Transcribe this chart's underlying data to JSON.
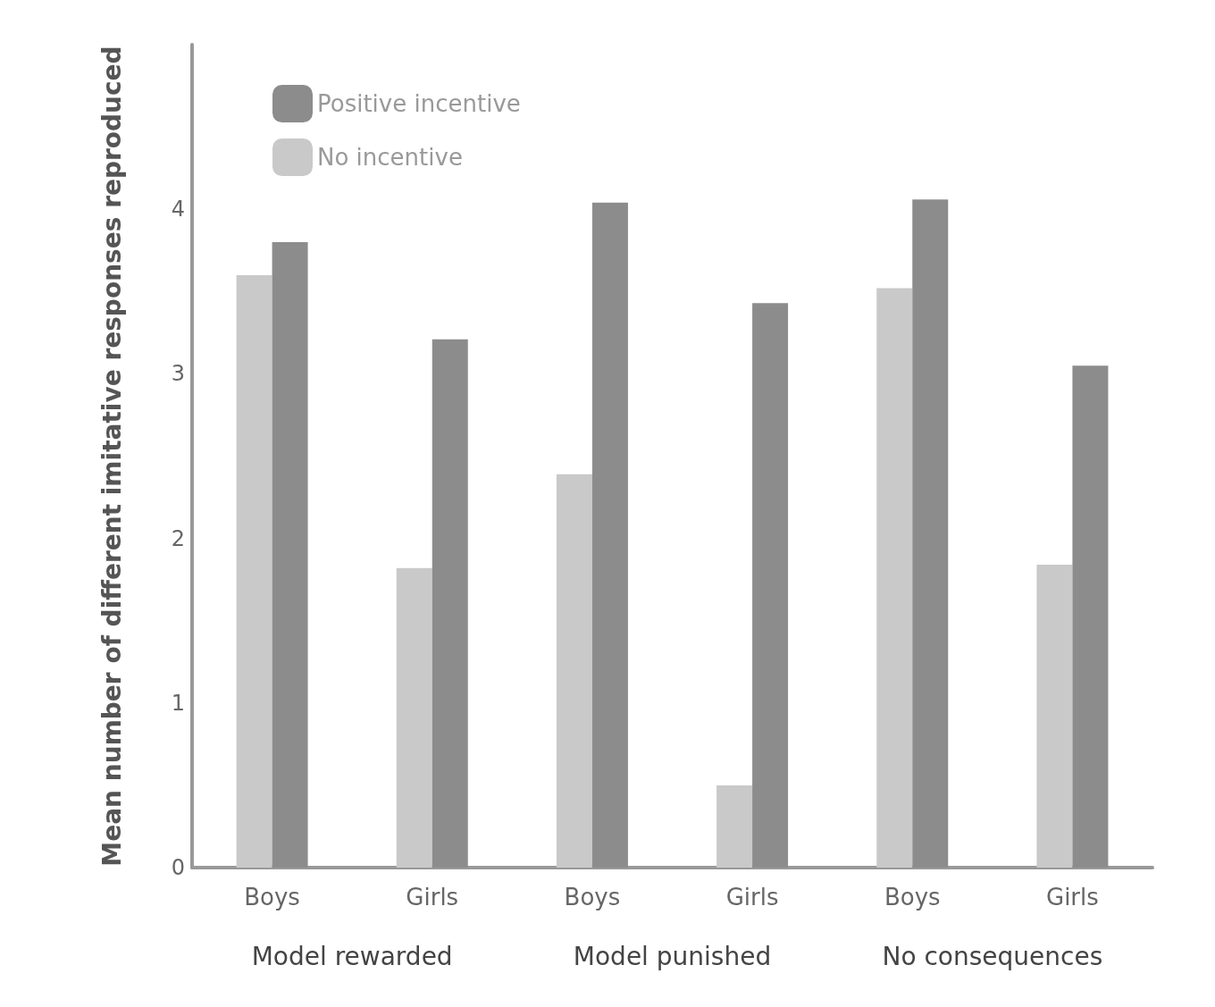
{
  "chart_data": {
    "type": "bar",
    "ylabel": "Mean number of different imitative responses reproduced",
    "categories": [
      "Boys",
      "Girls",
      "Boys",
      "Girls",
      "Boys",
      "Girls"
    ],
    "series": [
      {
        "name": "No incentive",
        "color": "#c9c9c9",
        "values": [
          3.6,
          1.82,
          2.39,
          0.5,
          3.52,
          1.84
        ]
      },
      {
        "name": "Positive incentive",
        "color": "#8c8c8c",
        "values": [
          3.8,
          3.21,
          4.04,
          3.43,
          4.06,
          3.05
        ]
      }
    ],
    "annotations": [
      "Model rewarded",
      "Model punished",
      "No consequences"
    ],
    "ylim": [
      0,
      5
    ],
    "yticks": [
      0,
      1,
      2,
      3,
      4
    ],
    "grid": false,
    "legend": "top left"
  }
}
